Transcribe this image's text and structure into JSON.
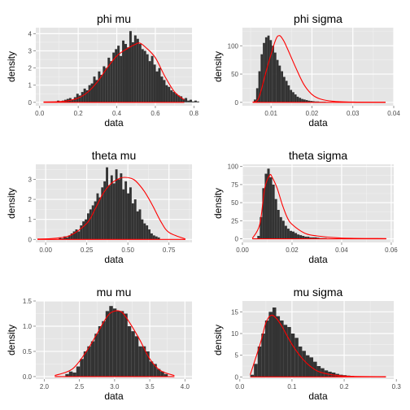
{
  "colors": {
    "panel_bg": "#E5E5E5",
    "grid_major": "#FFFFFF",
    "grid_minor": "#F2F2F2",
    "bar_fill": "#333333",
    "density_line": "#FF0000",
    "tick_text": "#4D4D4D"
  },
  "chart_data": [
    {
      "type": "bar",
      "title": "phi mu",
      "xlabel": "data",
      "ylabel": "density",
      "xlim": [
        -0.02,
        0.79
      ],
      "ylim": [
        -0.2,
        4.35
      ],
      "xticks": [
        0.0,
        0.2,
        0.4,
        0.6,
        0.8
      ],
      "xtick_labels": [
        "0.0",
        "0.2",
        "0.4",
        "0.6",
        "0.8"
      ],
      "yticks": [
        0,
        1,
        2,
        3,
        4
      ],
      "ytick_labels": [
        "0",
        "1",
        "2",
        "3",
        "4"
      ],
      "bin_start": 0.09,
      "bin_width": 0.0125,
      "values": [
        0.1,
        0.05,
        0.1,
        0.15,
        0.2,
        0.25,
        0.15,
        0.3,
        0.5,
        0.4,
        0.6,
        0.8,
        0.7,
        1.0,
        1.1,
        1.5,
        1.3,
        1.8,
        1.6,
        2.1,
        2.0,
        2.6,
        2.4,
        2.9,
        3.1,
        3.3,
        2.7,
        3.6,
        3.4,
        3.2,
        4.15,
        3.5,
        3.9,
        3.7,
        3.4,
        3.1,
        3.0,
        2.8,
        2.4,
        2.7,
        2.2,
        1.8,
        2.0,
        1.5,
        1.3,
        1.0,
        0.9,
        0.7,
        0.6,
        0.5,
        0.4,
        0.35,
        0.2,
        0.25,
        0.1,
        0.15,
        0.05,
        0.1,
        0.05
      ],
      "density": {
        "x": [
          0.02,
          0.1,
          0.15,
          0.2,
          0.25,
          0.3,
          0.35,
          0.4,
          0.45,
          0.5,
          0.52,
          0.55,
          0.6,
          0.65,
          0.7,
          0.75
        ],
        "y": [
          0.02,
          0.04,
          0.1,
          0.25,
          0.6,
          1.2,
          2.0,
          2.7,
          3.1,
          3.4,
          3.45,
          3.2,
          2.6,
          1.5,
          0.6,
          0.15
        ]
      }
    },
    {
      "type": "bar",
      "title": "phi sigma",
      "xlabel": "data",
      "ylabel": "density",
      "xlim": [
        0.003,
        0.04
      ],
      "ylim": [
        -6,
        132
      ],
      "xticks": [
        0.01,
        0.02,
        0.03,
        0.04
      ],
      "xtick_labels": [
        "0.01",
        "0.02",
        "0.03",
        "0.04"
      ],
      "yticks": [
        0,
        50,
        100
      ],
      "ytick_labels": [
        "0",
        "50",
        "100"
      ],
      "bin_start": 0.0058,
      "bin_width": 0.00055,
      "values": [
        5,
        25,
        55,
        85,
        105,
        115,
        118,
        110,
        100,
        88,
        75,
        65,
        55,
        45,
        38,
        30,
        22,
        18,
        14,
        10,
        8,
        6,
        5,
        4,
        3,
        2.5,
        2,
        1.5,
        1.5,
        1,
        1,
        1,
        0.5,
        0.5,
        0.5,
        0.5
      ],
      "density": {
        "x": [
          0.0055,
          0.007,
          0.009,
          0.011,
          0.012,
          0.013,
          0.014,
          0.016,
          0.018,
          0.02,
          0.022,
          0.025,
          0.03,
          0.038
        ],
        "y": [
          0.5,
          8,
          60,
          108,
          118,
          110,
          95,
          62,
          32,
          14,
          6,
          2,
          0.5,
          0.2
        ]
      }
    },
    {
      "type": "bar",
      "title": "theta mu",
      "xlabel": "data",
      "ylabel": "density",
      "xlim": [
        -0.06,
        0.89
      ],
      "ylim": [
        -0.15,
        3.75
      ],
      "xticks": [
        0.0,
        0.25,
        0.5,
        0.75
      ],
      "xtick_labels": [
        "0.00",
        "0.25",
        "0.50",
        "0.75"
      ],
      "yticks": [
        0,
        1,
        2,
        3
      ],
      "ytick_labels": [
        "0",
        "1",
        "2",
        "3"
      ],
      "bin_start": 0.08,
      "bin_width": 0.0143,
      "values": [
        0.1,
        0.05,
        0.15,
        0.1,
        0.2,
        0.3,
        0.4,
        0.5,
        0.4,
        0.7,
        0.9,
        1.0,
        1.3,
        1.5,
        1.7,
        1.9,
        2.3,
        2.1,
        2.6,
        2.9,
        3.6,
        2.7,
        3.2,
        2.8,
        3.5,
        3.0,
        3.3,
        2.5,
        2.9,
        2.3,
        2.6,
        1.8,
        2.0,
        1.4,
        1.5,
        1.0,
        0.8,
        0.7,
        0.5,
        0.3,
        0.2,
        0.15,
        0.1
      ],
      "density": {
        "x": [
          -0.05,
          0.05,
          0.15,
          0.25,
          0.3,
          0.35,
          0.4,
          0.45,
          0.48,
          0.52,
          0.55,
          0.6,
          0.65,
          0.7,
          0.75,
          0.85
        ],
        "y": [
          0.02,
          0.05,
          0.2,
          0.8,
          1.5,
          2.3,
          2.8,
          3.05,
          3.1,
          3.05,
          2.9,
          2.4,
          1.7,
          0.9,
          0.35,
          0.02
        ]
      }
    },
    {
      "type": "bar",
      "title": "theta sigma",
      "xlabel": "data",
      "ylabel": "density",
      "xlim": [
        0.0,
        0.061
      ],
      "ylim": [
        -5,
        103
      ],
      "xticks": [
        0.0,
        0.02,
        0.04,
        0.06
      ],
      "xtick_labels": [
        "0.00",
        "0.02",
        "0.04",
        "0.06"
      ],
      "yticks": [
        0,
        25,
        50,
        75,
        100
      ],
      "ytick_labels": [
        "0",
        "25",
        "50",
        "75",
        "100"
      ],
      "bin_start": 0.006,
      "bin_width": 0.001,
      "values": [
        4,
        30,
        70,
        90,
        97,
        85,
        75,
        55,
        40,
        30,
        25,
        18,
        14,
        11,
        10,
        8,
        6,
        5,
        4,
        3,
        3,
        2,
        2,
        2,
        1.5,
        1,
        1,
        1,
        0.5,
        0.5
      ],
      "density": {
        "x": [
          0.004,
          0.007,
          0.009,
          0.011,
          0.012,
          0.014,
          0.016,
          0.018,
          0.02,
          0.025,
          0.03,
          0.04,
          0.058
        ],
        "y": [
          0.5,
          20,
          70,
          88,
          85,
          70,
          48,
          30,
          20,
          8,
          4,
          1,
          0.3
        ]
      }
    },
    {
      "type": "bar",
      "title": "mu mu",
      "xlabel": "data",
      "ylabel": "density",
      "xlim": [
        1.88,
        4.1
      ],
      "ylim": [
        -0.05,
        1.5
      ],
      "xticks": [
        2.0,
        2.5,
        3.0,
        3.5,
        4.0
      ],
      "xtick_labels": [
        "2.0",
        "2.5",
        "3.0",
        "3.5",
        "4.0"
      ],
      "yticks": [
        0.0,
        0.5,
        1.0,
        1.5
      ],
      "ytick_labels": [
        "0.0",
        "0.5",
        "1.0",
        "1.5"
      ],
      "bin_start": 2.3,
      "bin_width": 0.052,
      "values": [
        0.05,
        0.1,
        0.08,
        0.2,
        0.35,
        0.5,
        0.6,
        0.7,
        0.85,
        1.0,
        1.1,
        1.3,
        1.4,
        1.35,
        1.3,
        1.3,
        1.25,
        1.0,
        0.9,
        0.8,
        0.6,
        0.6,
        0.5,
        0.3,
        0.25,
        0.15,
        0.1,
        0.05
      ],
      "density": {
        "x": [
          2.15,
          2.4,
          2.6,
          2.75,
          2.9,
          3.0,
          3.1,
          3.2,
          3.35,
          3.5,
          3.65,
          3.85
        ],
        "y": [
          0.02,
          0.15,
          0.5,
          0.85,
          1.2,
          1.3,
          1.28,
          1.1,
          0.75,
          0.35,
          0.12,
          0.02
        ]
      }
    },
    {
      "type": "bar",
      "title": "mu sigma",
      "xlabel": "data",
      "ylabel": "density",
      "xlim": [
        0.005,
        0.295
      ],
      "ylim": [
        -0.5,
        17.5
      ],
      "xticks": [
        0.0,
        0.1,
        0.2,
        0.3
      ],
      "xtick_labels": [
        "0.0",
        "0.1",
        "0.2",
        "0.3"
      ],
      "yticks": [
        0,
        5,
        10,
        15
      ],
      "ytick_labels": [
        "0",
        "5",
        "10",
        "15"
      ],
      "bin_start": 0.02,
      "bin_width": 0.0071,
      "values": [
        0.5,
        3,
        7,
        10,
        13,
        15,
        16,
        14,
        13,
        12,
        11.5,
        10,
        9,
        7,
        6,
        5,
        4.5,
        3.5,
        2.5,
        2,
        1.5,
        1.2,
        1,
        0.7,
        0.5,
        0.4,
        0.3,
        0.2,
        0.15,
        0.1,
        0.1,
        0.1,
        0.1
      ],
      "density": {
        "x": [
          0.02,
          0.04,
          0.05,
          0.06,
          0.07,
          0.08,
          0.1,
          0.12,
          0.14,
          0.16,
          0.2,
          0.28
        ],
        "y": [
          0.5,
          8,
          12.5,
          14.2,
          13.5,
          11.8,
          7.5,
          4.2,
          2.0,
          0.9,
          0.2,
          0.05
        ]
      }
    }
  ]
}
